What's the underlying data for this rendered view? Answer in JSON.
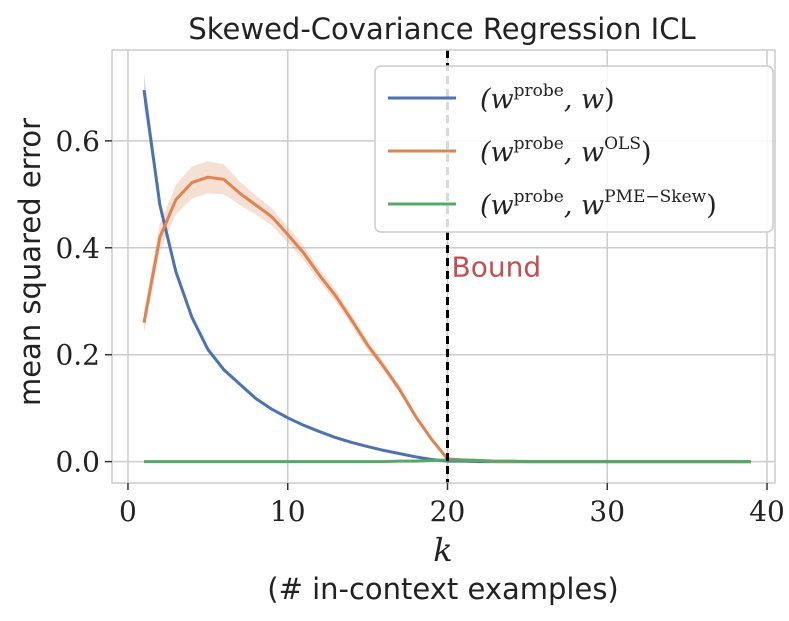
{
  "chart_data": {
    "type": "line",
    "title": "Skewed-Covariance Regression ICL",
    "xlabel": "k",
    "xlabel_sub": "(# in-context examples)",
    "ylabel": "mean squared error",
    "xlim": [
      -1,
      40.5
    ],
    "ylim": [
      -0.04,
      0.77
    ],
    "xticks": [
      0,
      10,
      20,
      30,
      40
    ],
    "yticks": [
      0.0,
      0.2,
      0.4,
      0.6
    ],
    "ytick_labels": [
      "0.0",
      "0.2",
      "0.4",
      "0.6"
    ],
    "grid": true,
    "legend_position": "top-right",
    "annotation": {
      "text": "Bound",
      "x": 20,
      "y": 0.365,
      "color": "#c44e52"
    },
    "vline": {
      "x": 20,
      "style": "dashed",
      "color": "#000000"
    },
    "series": [
      {
        "name": "(w^probe, w)",
        "label_base": "(w",
        "label_sup1": "probe",
        "label_mid": ", w",
        "label_sup2": "",
        "label_end": ")",
        "color": "#4c72b0",
        "x": [
          1,
          2,
          3,
          4,
          5,
          6,
          7,
          8,
          9,
          10,
          11,
          12,
          13,
          14,
          15,
          16,
          17,
          18,
          19,
          20,
          21,
          22,
          23,
          24,
          25,
          26,
          27,
          28,
          29,
          30,
          31,
          32,
          33,
          34,
          35,
          36,
          37,
          38,
          39
        ],
        "y": [
          0.695,
          0.48,
          0.355,
          0.27,
          0.21,
          0.172,
          0.145,
          0.118,
          0.098,
          0.082,
          0.068,
          0.056,
          0.045,
          0.036,
          0.028,
          0.021,
          0.015,
          0.009,
          0.004,
          0.001,
          0.001,
          0.0,
          0.0,
          0.0,
          0.0,
          0.0,
          0.0,
          0.0,
          0.0,
          0.0,
          0.0,
          0.0,
          0.0,
          0.0,
          0.0,
          0.0,
          0.0,
          0.0,
          0.0
        ],
        "band": [
          0.03,
          0.012,
          0.008,
          0.006,
          0.005,
          0.004,
          0.004,
          0.003,
          0.003,
          0.003,
          0.002,
          0.002,
          0.002,
          0.002,
          0.002,
          0.002,
          0.002,
          0.002,
          0.002,
          0.002,
          0,
          0,
          0,
          0,
          0,
          0,
          0,
          0,
          0,
          0,
          0,
          0,
          0,
          0,
          0,
          0,
          0,
          0,
          0
        ]
      },
      {
        "name": "(w^probe, w^OLS)",
        "label_base": "(w",
        "label_sup1": "probe",
        "label_mid": ", w",
        "label_sup2": "OLS",
        "label_end": ")",
        "color": "#dd8452",
        "x": [
          1,
          2,
          3,
          4,
          5,
          6,
          7,
          8,
          9,
          10,
          11,
          12,
          13,
          14,
          15,
          16,
          17,
          18,
          19,
          20,
          21,
          22,
          23,
          24,
          25,
          26,
          27,
          28,
          29,
          30,
          31,
          32,
          33,
          34,
          35,
          36,
          37,
          38,
          39
        ],
        "y": [
          0.26,
          0.42,
          0.49,
          0.522,
          0.532,
          0.528,
          0.502,
          0.48,
          0.458,
          0.425,
          0.39,
          0.348,
          0.31,
          0.265,
          0.218,
          0.178,
          0.135,
          0.085,
          0.042,
          0.005,
          0.003,
          0.002,
          0.0,
          0.0,
          0.0,
          0.0,
          0.0,
          0.0,
          0.0,
          0.0,
          0.0,
          0.0,
          0.0,
          0.0,
          0.0,
          0.0,
          0.0,
          0.0,
          0.0
        ],
        "band": [
          0.02,
          0.025,
          0.028,
          0.03,
          0.03,
          0.028,
          0.022,
          0.018,
          0.016,
          0.015,
          0.013,
          0.012,
          0.011,
          0.01,
          0.009,
          0.008,
          0.007,
          0.006,
          0.005,
          0.003,
          0.002,
          0.001,
          0,
          0,
          0,
          0,
          0,
          0,
          0,
          0,
          0,
          0,
          0,
          0,
          0,
          0,
          0,
          0,
          0
        ]
      },
      {
        "name": "(w^probe, w^PME-Skew)",
        "label_base": "(w",
        "label_sup1": "probe",
        "label_mid": ", w",
        "label_sup2": "PME−Skew",
        "label_end": ")",
        "color": "#55a868",
        "x": [
          1,
          2,
          3,
          4,
          5,
          6,
          7,
          8,
          9,
          10,
          11,
          12,
          13,
          14,
          15,
          16,
          17,
          18,
          19,
          20,
          21,
          22,
          23,
          24,
          25,
          26,
          27,
          28,
          29,
          30,
          31,
          32,
          33,
          34,
          35,
          36,
          37,
          38,
          39
        ],
        "y": [
          0.0,
          0.0,
          0.0,
          0.0,
          0.0,
          0.0,
          0.0,
          0.0,
          0.0,
          0.0,
          0.0,
          0.0,
          0.0,
          0.0,
          0.0,
          0.0,
          0.001,
          0.001,
          0.002,
          0.003,
          0.003,
          0.002,
          0.001,
          0.001,
          0.0,
          0.0,
          0.0,
          0.0,
          0.0,
          0.0,
          0.0,
          0.0,
          0.0,
          0.0,
          0.0,
          0.0,
          0.0,
          0.0,
          0.0
        ],
        "band": [
          0,
          0,
          0,
          0,
          0,
          0,
          0,
          0,
          0,
          0,
          0,
          0,
          0,
          0,
          0,
          0,
          0,
          0,
          0,
          0,
          0,
          0,
          0,
          0,
          0,
          0,
          0,
          0,
          0,
          0,
          0,
          0,
          0,
          0,
          0,
          0,
          0,
          0,
          0
        ]
      }
    ]
  }
}
